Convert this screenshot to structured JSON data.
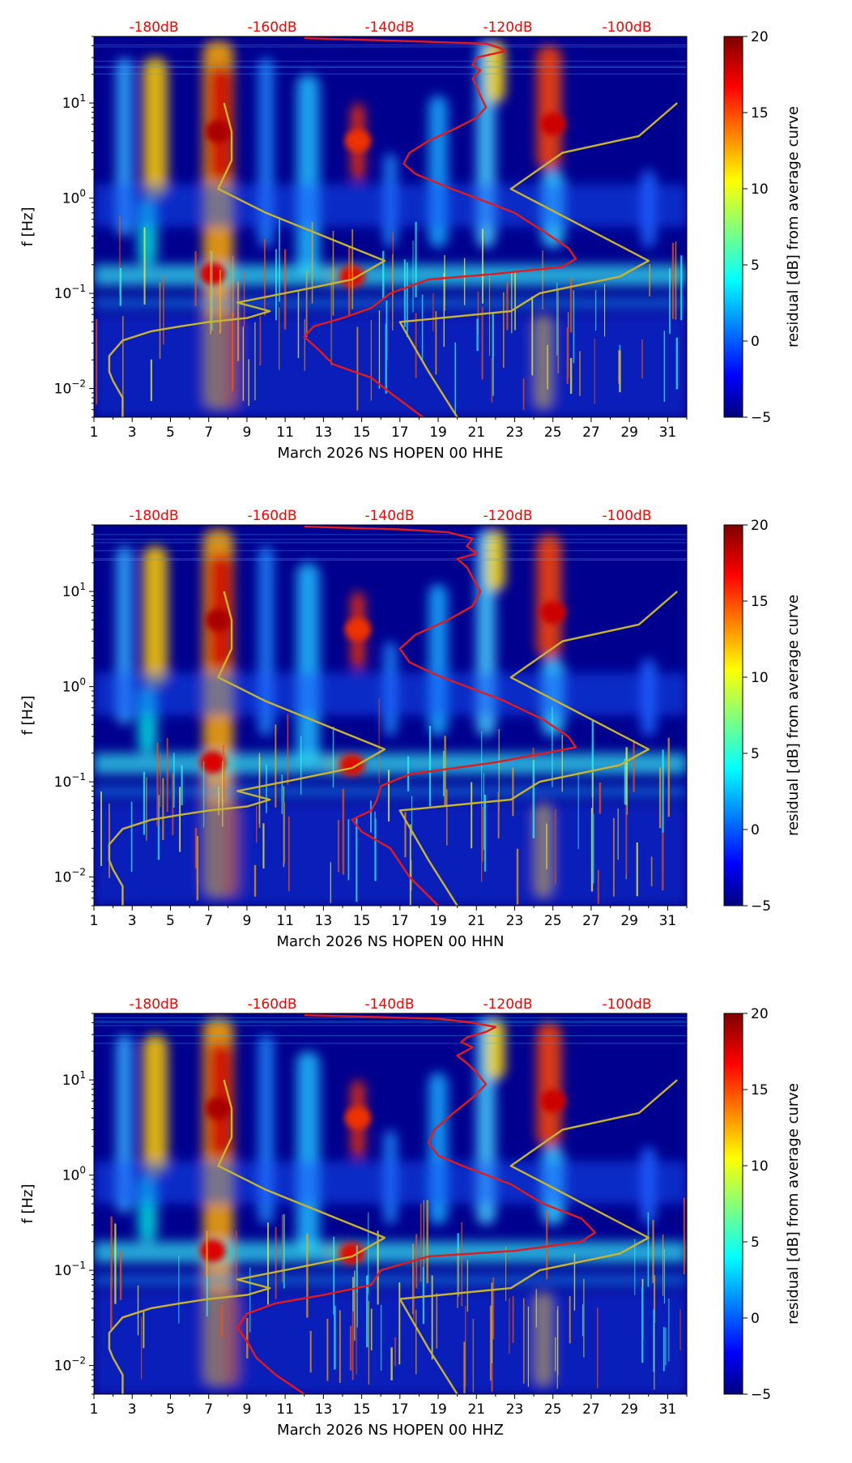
{
  "colorbar": {
    "label": "residual [dB] from average curve",
    "ticks": [
      20,
      15,
      10,
      5,
      0,
      -5
    ],
    "tick_labels": [
      "20",
      "15",
      "10",
      "5",
      "0",
      "−5"
    ],
    "colormap": "jet"
  },
  "colors": {
    "noise_curve": "#e31a1c",
    "model_curve": "#c8b430",
    "top_labels": "#ff0000"
  },
  "chart_data": [
    {
      "type": "heatmap",
      "xlabel": "March 2026 NS HOPEN 00 HHE",
      "ylabel": "f [Hz]",
      "x_ticks": [
        "1",
        "3",
        "5",
        "7",
        "9",
        "11",
        "13",
        "15",
        "17",
        "19",
        "21",
        "23",
        "25",
        "27",
        "29",
        "31"
      ],
      "y_ticks": [
        "10^-2",
        "10^-1",
        "10^0",
        "10^1"
      ],
      "y_scale": "log",
      "xlim": [
        1,
        32
      ],
      "ylim": [
        0.005,
        50
      ],
      "top_axis_labels": [
        "-180dB",
        "-160dB",
        "-140dB",
        "-120dB",
        "-100dB"
      ],
      "series": [
        {
          "name": "",
          "values": [
            [
              18.2,
              0.005
            ],
            [
              16.5,
              0.009
            ],
            [
              15.5,
              0.013
            ],
            [
              13.5,
              0.018
            ],
            [
              12.8,
              0.025
            ],
            [
              12.0,
              0.035
            ],
            [
              12.5,
              0.045
            ],
            [
              14.0,
              0.055
            ],
            [
              15.5,
              0.07
            ],
            [
              16.5,
              0.1
            ],
            [
              18.5,
              0.14
            ],
            [
              22,
              0.16
            ],
            [
              25.5,
              0.19
            ],
            [
              26.2,
              0.23
            ],
            [
              25.8,
              0.3
            ],
            [
              24.5,
              0.45
            ],
            [
              23.0,
              0.7
            ],
            [
              21.0,
              1.0
            ],
            [
              19.5,
              1.3
            ],
            [
              17.8,
              1.8
            ],
            [
              17.2,
              2.3
            ],
            [
              17.5,
              3
            ],
            [
              18.5,
              4
            ],
            [
              20,
              5.5
            ],
            [
              21.0,
              7
            ],
            [
              21.5,
              9
            ],
            [
              21.2,
              12
            ],
            [
              21.0,
              15
            ],
            [
              20.8,
              18
            ],
            [
              21.2,
              22
            ],
            [
              20.8,
              25
            ],
            [
              21.0,
              30
            ],
            [
              22.5,
              35
            ],
            [
              22.2,
              38
            ],
            [
              21.5,
              42
            ],
            [
              17.0,
              45
            ],
            [
              12.0,
              48
            ]
          ]
        },
        {
          "name": "",
          "values": [
            [
              2.5,
              0.005
            ],
            [
              2.5,
              0.008
            ],
            [
              2.0,
              0.012
            ],
            [
              1.8,
              0.015
            ],
            [
              1.8,
              0.022
            ],
            [
              2.5,
              0.032
            ],
            [
              4.0,
              0.04
            ],
            [
              5.5,
              0.045
            ],
            [
              7.0,
              0.05
            ],
            [
              9.0,
              0.055
            ],
            [
              10.2,
              0.065
            ],
            [
              8.5,
              0.08
            ],
            [
              11.5,
              0.105
            ],
            [
              14.5,
              0.14
            ],
            [
              16.2,
              0.22
            ],
            [
              13.0,
              0.4
            ],
            [
              10.0,
              0.7
            ],
            [
              7.5,
              1.25
            ],
            [
              8.2,
              2.5
            ],
            [
              8.2,
              5
            ],
            [
              7.8,
              10
            ]
          ]
        },
        {
          "name": "",
          "values": [
            [
              20.0,
              0.005
            ],
            [
              18.5,
              0.015
            ],
            [
              17.0,
              0.05
            ],
            [
              22.8,
              0.065
            ],
            [
              24.3,
              0.1
            ],
            [
              28.5,
              0.15
            ],
            [
              30.0,
              0.22
            ],
            [
              22.8,
              1.25
            ],
            [
              25.5,
              3.0
            ],
            [
              29.5,
              4.5
            ],
            [
              31.5,
              10
            ]
          ]
        }
      ]
    },
    {
      "type": "heatmap",
      "xlabel": "March 2026 NS HOPEN 00 HHN",
      "ylabel": "f [Hz]",
      "x_ticks": [
        "1",
        "3",
        "5",
        "7",
        "9",
        "11",
        "13",
        "15",
        "17",
        "19",
        "21",
        "23",
        "25",
        "27",
        "29",
        "31"
      ],
      "y_ticks": [
        "10^-2",
        "10^-1",
        "10^0",
        "10^1"
      ],
      "y_scale": "log",
      "xlim": [
        1,
        32
      ],
      "ylim": [
        0.005,
        50
      ],
      "top_axis_labels": [
        "-180dB",
        "-160dB",
        "-140dB",
        "-120dB",
        "-100dB"
      ],
      "series": [
        {
          "name": "",
          "values": [
            [
              19.0,
              0.005
            ],
            [
              17.5,
              0.01
            ],
            [
              16.5,
              0.02
            ],
            [
              15.0,
              0.03
            ],
            [
              14.5,
              0.04
            ],
            [
              15.5,
              0.05
            ],
            [
              15.8,
              0.065
            ],
            [
              16.0,
              0.09
            ],
            [
              17.5,
              0.12
            ],
            [
              22,
              0.16
            ],
            [
              26.2,
              0.23
            ],
            [
              25.8,
              0.3
            ],
            [
              24.5,
              0.45
            ],
            [
              22.5,
              0.7
            ],
            [
              20.5,
              1.0
            ],
            [
              19.0,
              1.3
            ],
            [
              17.5,
              1.8
            ],
            [
              17.0,
              2.5
            ],
            [
              17.8,
              3.5
            ],
            [
              19.5,
              5
            ],
            [
              20.8,
              7
            ],
            [
              21.2,
              10
            ],
            [
              20.8,
              14
            ],
            [
              20.5,
              18
            ],
            [
              20.0,
              22
            ],
            [
              21.0,
              25
            ],
            [
              20.5,
              30
            ],
            [
              20.8,
              36
            ],
            [
              19.5,
              42
            ],
            [
              17.0,
              45
            ],
            [
              12.0,
              48
            ]
          ]
        },
        {
          "name": "",
          "values": [
            [
              2.5,
              0.005
            ],
            [
              2.5,
              0.008
            ],
            [
              2.0,
              0.012
            ],
            [
              1.8,
              0.015
            ],
            [
              1.8,
              0.022
            ],
            [
              2.5,
              0.032
            ],
            [
              4.0,
              0.04
            ],
            [
              5.5,
              0.045
            ],
            [
              7.0,
              0.05
            ],
            [
              9.0,
              0.055
            ],
            [
              10.2,
              0.065
            ],
            [
              8.5,
              0.08
            ],
            [
              11.5,
              0.105
            ],
            [
              14.5,
              0.14
            ],
            [
              16.2,
              0.22
            ],
            [
              13.0,
              0.4
            ],
            [
              10.0,
              0.7
            ],
            [
              7.5,
              1.25
            ],
            [
              8.2,
              2.5
            ],
            [
              8.2,
              5
            ],
            [
              7.8,
              10
            ]
          ]
        },
        {
          "name": "",
          "values": [
            [
              20.0,
              0.005
            ],
            [
              18.5,
              0.015
            ],
            [
              17.0,
              0.05
            ],
            [
              22.8,
              0.065
            ],
            [
              24.3,
              0.1
            ],
            [
              28.5,
              0.15
            ],
            [
              30.0,
              0.22
            ],
            [
              22.8,
              1.25
            ],
            [
              25.5,
              3.0
            ],
            [
              29.5,
              4.5
            ],
            [
              31.5,
              10
            ]
          ]
        }
      ]
    },
    {
      "type": "heatmap",
      "xlabel": "March 2026 NS HOPEN 00 HHZ",
      "ylabel": "f [Hz]",
      "x_ticks": [
        "1",
        "3",
        "5",
        "7",
        "9",
        "11",
        "13",
        "15",
        "17",
        "19",
        "21",
        "23",
        "25",
        "27",
        "29",
        "31"
      ],
      "y_ticks": [
        "10^-2",
        "10^-1",
        "10^0",
        "10^1"
      ],
      "y_scale": "log",
      "xlim": [
        1,
        32
      ],
      "ylim": [
        0.005,
        50
      ],
      "top_axis_labels": [
        "-180dB",
        "-160dB",
        "-140dB",
        "-120dB",
        "-100dB"
      ],
      "series": [
        {
          "name": "",
          "values": [
            [
              12.0,
              0.005
            ],
            [
              10.5,
              0.008
            ],
            [
              9.5,
              0.012
            ],
            [
              9.0,
              0.018
            ],
            [
              8.5,
              0.025
            ],
            [
              9.0,
              0.035
            ],
            [
              10.5,
              0.045
            ],
            [
              13.0,
              0.055
            ],
            [
              15.5,
              0.07
            ],
            [
              16.0,
              0.1
            ],
            [
              18.5,
              0.14
            ],
            [
              23,
              0.16
            ],
            [
              26.5,
              0.2
            ],
            [
              27.2,
              0.25
            ],
            [
              26.5,
              0.35
            ],
            [
              24.5,
              0.5
            ],
            [
              22.8,
              0.8
            ],
            [
              20.5,
              1.2
            ],
            [
              19.0,
              1.6
            ],
            [
              18.5,
              2.2
            ],
            [
              18.8,
              3
            ],
            [
              19.8,
              4.5
            ],
            [
              20.8,
              6.5
            ],
            [
              21.5,
              9
            ],
            [
              21.0,
              12
            ],
            [
              20.5,
              15
            ],
            [
              20.0,
              18
            ],
            [
              20.8,
              22
            ],
            [
              20.2,
              25
            ],
            [
              20.5,
              28
            ],
            [
              21.5,
              32
            ],
            [
              22.0,
              36
            ],
            [
              20.8,
              40
            ],
            [
              19.0,
              44
            ],
            [
              12.0,
              48
            ]
          ]
        },
        {
          "name": "",
          "values": [
            [
              2.5,
              0.005
            ],
            [
              2.5,
              0.008
            ],
            [
              2.0,
              0.012
            ],
            [
              1.8,
              0.015
            ],
            [
              1.8,
              0.022
            ],
            [
              2.5,
              0.032
            ],
            [
              4.0,
              0.04
            ],
            [
              5.5,
              0.045
            ],
            [
              7.0,
              0.05
            ],
            [
              9.0,
              0.055
            ],
            [
              10.2,
              0.065
            ],
            [
              8.5,
              0.08
            ],
            [
              11.5,
              0.105
            ],
            [
              14.5,
              0.14
            ],
            [
              16.2,
              0.22
            ],
            [
              13.0,
              0.4
            ],
            [
              10.0,
              0.7
            ],
            [
              7.5,
              1.25
            ],
            [
              8.2,
              2.5
            ],
            [
              8.2,
              5
            ],
            [
              7.8,
              10
            ]
          ]
        },
        {
          "name": "",
          "values": [
            [
              20.0,
              0.005
            ],
            [
              18.5,
              0.015
            ],
            [
              17.0,
              0.05
            ],
            [
              22.8,
              0.065
            ],
            [
              24.3,
              0.1
            ],
            [
              28.5,
              0.15
            ],
            [
              30.0,
              0.22
            ],
            [
              22.8,
              1.25
            ],
            [
              25.5,
              3.0
            ],
            [
              29.5,
              4.5
            ],
            [
              31.5,
              10
            ]
          ]
        }
      ]
    }
  ]
}
